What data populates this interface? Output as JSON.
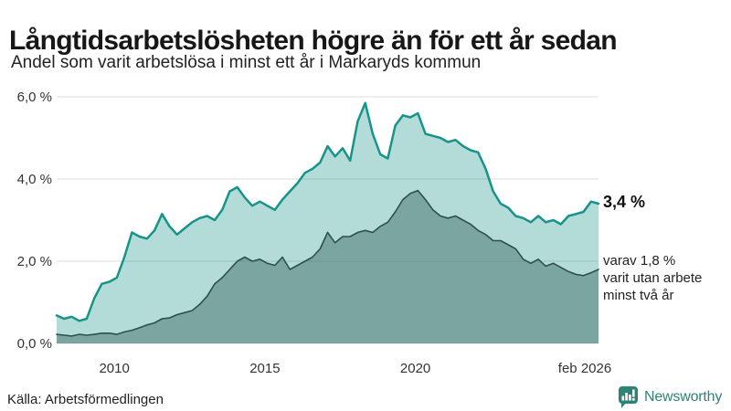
{
  "chart_data": {
    "type": "area",
    "title": "Långtidsarbetslösheten högre än för ett år sedan",
    "subtitle": "Andel som varit arbetslösa i minst ett år i Markaryds kommun",
    "x_start": 2008.083,
    "x_end": 2026.083,
    "x_note": "fractional years, Feb 2008 – Feb 2026, evenly spaced samples",
    "ylim": [
      0,
      6
    ],
    "grid": "horizontal",
    "legend_position": "right-annotations",
    "yticks": [
      {
        "value": 0,
        "label": "0,0 %"
      },
      {
        "value": 2,
        "label": "2,0 %"
      },
      {
        "value": 4,
        "label": "4,0 %"
      },
      {
        "value": 6,
        "label": "6,0 %"
      }
    ],
    "xticks": [
      {
        "year": 2010,
        "label": "2010"
      },
      {
        "year": 2015,
        "label": "2015"
      },
      {
        "year": 2020,
        "label": "2020"
      },
      {
        "year": 2026.083,
        "label": "feb 2026"
      }
    ],
    "series": [
      {
        "name": "Andel som varit arbetslösa i minst ett år",
        "latest_value": 3.4,
        "latest_label": "3,4 %",
        "line_color": "#17948a",
        "fill_color": "rgba(23,148,138,0.33)",
        "line_width": 2.5,
        "values": [
          0.68,
          0.6,
          0.65,
          0.55,
          0.6,
          1.1,
          1.45,
          1.5,
          1.6,
          2.1,
          2.7,
          2.6,
          2.55,
          2.75,
          3.15,
          2.85,
          2.65,
          2.8,
          2.95,
          3.05,
          3.1,
          3.0,
          3.25,
          3.7,
          3.8,
          3.55,
          3.35,
          3.45,
          3.35,
          3.25,
          3.5,
          3.7,
          3.9,
          4.15,
          4.25,
          4.4,
          4.8,
          4.55,
          4.75,
          4.45,
          5.4,
          5.85,
          5.1,
          4.6,
          4.5,
          5.3,
          5.55,
          5.5,
          5.6,
          5.1,
          5.05,
          5.0,
          4.9,
          4.95,
          4.8,
          4.7,
          4.65,
          4.25,
          3.7,
          3.4,
          3.3,
          3.1,
          3.05,
          2.95,
          3.1,
          2.95,
          3.0,
          2.9,
          3.1,
          3.15,
          3.2,
          3.45,
          3.4
        ]
      },
      {
        "name": "varav varit utan arbete minst två år",
        "latest_value": 1.8,
        "latest_label": "1,8 %",
        "line_color": "#2f4f4a",
        "fill_color": "rgba(31,77,70,0.38)",
        "line_width": 1.6,
        "values": [
          0.22,
          0.2,
          0.18,
          0.22,
          0.2,
          0.22,
          0.25,
          0.25,
          0.22,
          0.28,
          0.32,
          0.38,
          0.45,
          0.5,
          0.6,
          0.62,
          0.7,
          0.75,
          0.8,
          0.95,
          1.15,
          1.45,
          1.6,
          1.8,
          2.0,
          2.1,
          2.0,
          2.05,
          1.95,
          1.9,
          2.1,
          1.8,
          1.9,
          2.0,
          2.1,
          2.3,
          2.7,
          2.45,
          2.6,
          2.6,
          2.7,
          2.75,
          2.7,
          2.85,
          2.95,
          3.2,
          3.5,
          3.65,
          3.72,
          3.5,
          3.25,
          3.1,
          3.05,
          3.1,
          3.0,
          2.9,
          2.75,
          2.65,
          2.5,
          2.5,
          2.4,
          2.3,
          2.05,
          1.95,
          2.05,
          1.88,
          1.95,
          1.85,
          1.75,
          1.68,
          1.65,
          1.72,
          1.8
        ]
      }
    ],
    "colors": {
      "grid": "#dcdcdc",
      "axis_text": "#333333",
      "accent_teal": "#17948a",
      "dark_teal": "#2f4f4a"
    }
  },
  "annotations": {
    "latest_total": "3,4 %",
    "subset_line1": "varav 1,8 %",
    "subset_line2": "varit utan arbete",
    "subset_line3": "minst två år"
  },
  "footer": {
    "source": "Källa: Arbetsförmedlingen",
    "brand": "Newsworthy",
    "brand_color": "#2c8376"
  }
}
